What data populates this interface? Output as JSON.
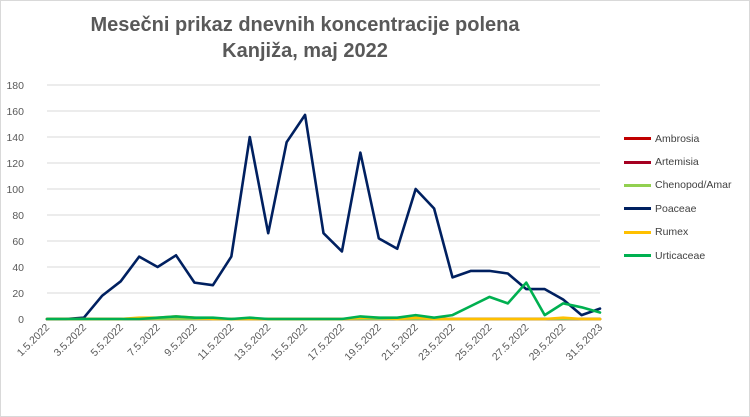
{
  "chart_data": {
    "type": "line",
    "title": "Mesečni prikaz dnevnih koncentracije polena",
    "subtitle": "Kanjiža, maj 2022",
    "xlabel": "",
    "ylabel": "",
    "ylim": [
      0,
      180
    ],
    "yticks": [
      "0",
      "20",
      "40",
      "60",
      "80",
      "100",
      "120",
      "140",
      "160",
      "180"
    ],
    "grid": true,
    "legend_position": "right",
    "x": [
      "1.5.2022",
      "2.5.2022",
      "3.5.2022",
      "4.5.2022",
      "5.5.2022",
      "6.5.2022",
      "7.5.2022",
      "8.5.2022",
      "9.5.2022",
      "10.5.2022",
      "11.5.2022",
      "12.5.2022",
      "13.5.2022",
      "14.5.2022",
      "15.5.2022",
      "16.5.2022",
      "17.5.2022",
      "18.5.2022",
      "19.5.2022",
      "20.5.2022",
      "21.5.2022",
      "22.5.2022",
      "23.5.2022",
      "24.5.2022",
      "25.5.2022",
      "26.5.2022",
      "27.5.2022",
      "28.5.2022",
      "29.5.2022",
      "30.5.2022",
      "31.5.2023"
    ],
    "xtick_labels": [
      "1.5.2022",
      "3.5.2022",
      "5.5.2022",
      "7.5.2022",
      "9.5.2022",
      "11.5.2022",
      "13.5.2022",
      "15.5.2022",
      "17.5.2022",
      "19.5.2022",
      "21.5.2022",
      "23.5.2022",
      "25.5.2022",
      "27.5.2022",
      "29.5.2022",
      "31.5.2023"
    ],
    "series": [
      {
        "name": "Ambrosia",
        "color": "#c00000",
        "values": [
          0,
          0,
          0,
          0,
          0,
          0,
          0,
          0,
          0,
          0,
          0,
          0,
          0,
          0,
          0,
          0,
          0,
          0,
          0,
          0,
          0,
          0,
          0,
          0,
          0,
          0,
          0,
          0,
          0,
          0,
          0
        ]
      },
      {
        "name": "Artemisia",
        "color": "#a50021",
        "values": [
          0,
          0,
          0,
          0,
          0,
          0,
          0,
          0,
          0,
          0,
          0,
          0,
          0,
          0,
          0,
          0,
          0,
          0,
          0,
          0,
          0,
          0,
          0,
          0,
          0,
          0,
          0,
          0,
          0,
          0,
          0
        ]
      },
      {
        "name": "Chenopod/Amar",
        "color": "#92d050",
        "values": [
          0,
          0,
          0,
          0,
          0,
          0,
          0,
          0,
          0,
          0,
          0,
          0,
          0,
          0,
          0,
          0,
          0,
          0,
          0,
          0,
          0,
          0,
          0,
          0,
          0,
          0,
          0,
          0,
          0,
          0,
          0
        ]
      },
      {
        "name": "Poaceae",
        "color": "#002060",
        "values": [
          0,
          0,
          1,
          18,
          29,
          48,
          40,
          49,
          28,
          26,
          48,
          140,
          66,
          136,
          157,
          66,
          52,
          128,
          62,
          54,
          100,
          85,
          32,
          37,
          37,
          35,
          23,
          23,
          15,
          3,
          8
        ]
      },
      {
        "name": "Rumex",
        "color": "#ffc000",
        "values": [
          0,
          0,
          0,
          0,
          0,
          1,
          1,
          2,
          1,
          0,
          0,
          0,
          0,
          0,
          0,
          0,
          0,
          1,
          1,
          0,
          1,
          0,
          0,
          0,
          0,
          0,
          0,
          0,
          1,
          0,
          0
        ]
      },
      {
        "name": "Urticaceae",
        "color": "#00b050",
        "values": [
          0,
          0,
          0,
          0,
          0,
          0,
          1,
          2,
          1,
          1,
          0,
          1,
          0,
          0,
          0,
          0,
          0,
          2,
          1,
          1,
          3,
          1,
          3,
          10,
          17,
          12,
          28,
          3,
          12,
          9,
          5
        ]
      }
    ]
  }
}
